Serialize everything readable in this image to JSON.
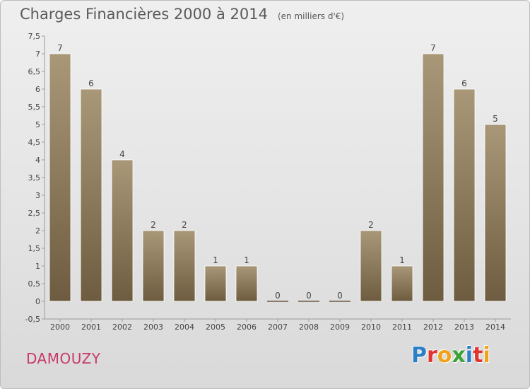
{
  "header": {
    "title": "Charges Financières 2000 à 2014",
    "subtitle": "(en milliers d'€)"
  },
  "footer": {
    "commune": "DAMOUZY",
    "logo_text": "Proxiti"
  },
  "colors": {
    "bar_top": "#a89878",
    "bar_bottom": "#6e5c40",
    "commune": "#c8386a",
    "logo": [
      "#2b7fc4",
      "#e0342e",
      "#f0a21a",
      "#3aa335",
      "#2b7fc4",
      "#e0342e",
      "#f0a21a"
    ]
  },
  "chart_data": {
    "type": "bar",
    "title": "Charges Financières 2000 à 2014",
    "subtitle": "(en milliers d'€)",
    "categories": [
      "2000",
      "2001",
      "2002",
      "2003",
      "2004",
      "2005",
      "2006",
      "2007",
      "2008",
      "2009",
      "2010",
      "2011",
      "2012",
      "2013",
      "2014"
    ],
    "values": [
      7,
      6,
      4,
      2,
      2,
      1,
      1,
      0,
      0,
      0,
      2,
      1,
      7,
      6,
      5
    ],
    "value_labels": [
      "7",
      "6",
      "4",
      "2",
      "2",
      "1",
      "1",
      "0",
      "0",
      "0",
      "2",
      "1",
      "7",
      "6",
      "5"
    ],
    "ylim": [
      -0.5,
      7.5
    ],
    "yticks": [
      "-0,5",
      "0",
      "0,5",
      "1",
      "1,5",
      "2",
      "2,5",
      "3",
      "3,5",
      "4",
      "4,5",
      "5",
      "5,5",
      "6",
      "6,5",
      "7",
      "7,5"
    ],
    "ytick_values": [
      -0.5,
      0,
      0.5,
      1,
      1.5,
      2,
      2.5,
      3,
      3.5,
      4,
      4.5,
      5,
      5.5,
      6,
      6.5,
      7,
      7.5
    ],
    "grid": false,
    "xlabel": "",
    "ylabel": ""
  }
}
